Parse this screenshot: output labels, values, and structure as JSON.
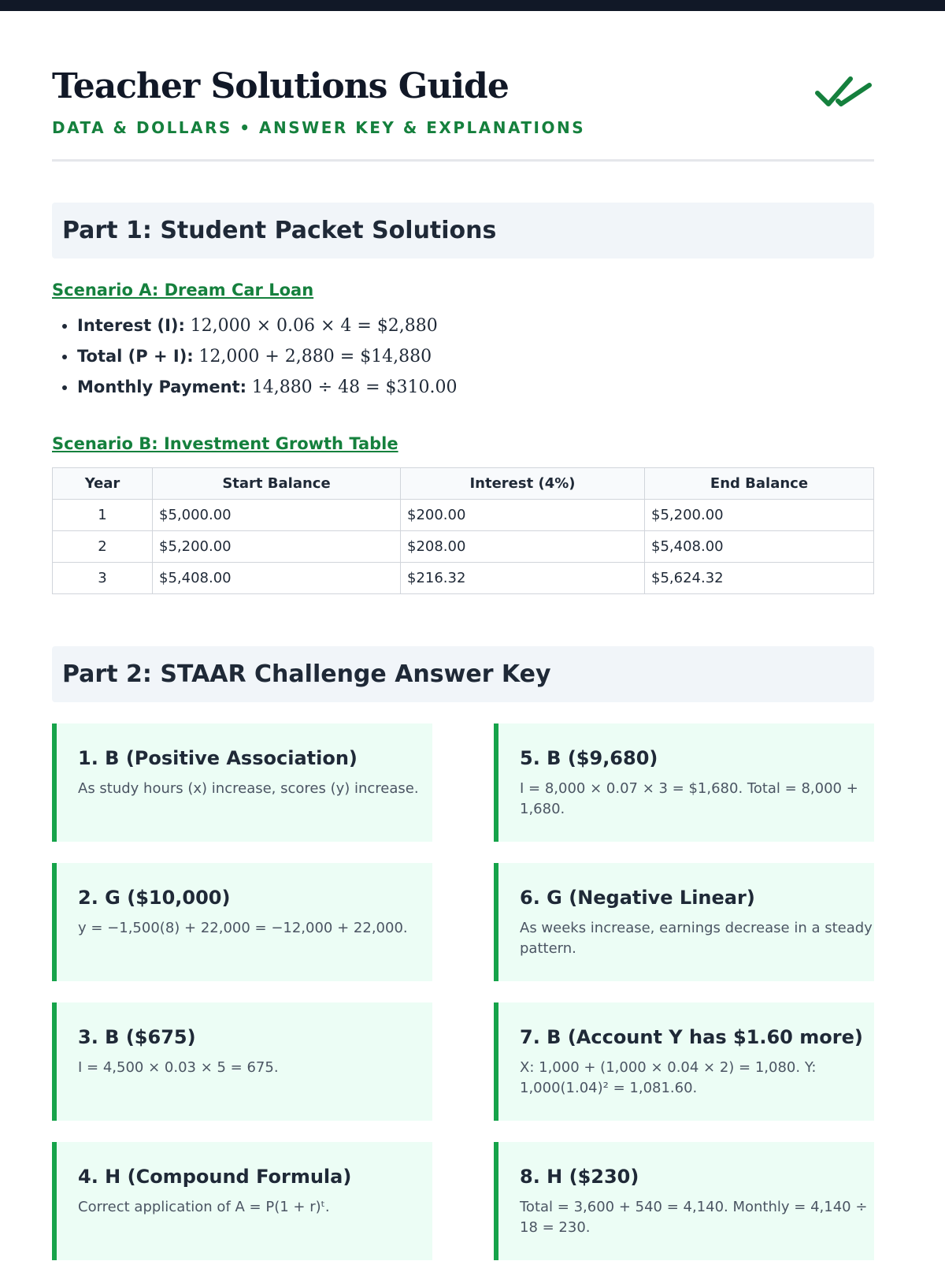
{
  "header": {
    "title": "Teacher Solutions Guide",
    "subtitle": "DATA & DOLLARS • ANSWER KEY & EXPLANATIONS"
  },
  "part1": {
    "heading": "Part 1: Student Packet Solutions",
    "scenario_a": {
      "title": "Scenario A: Dream Car Loan",
      "items": [
        {
          "label": "Interest (I):",
          "expr": "12,000 × 0.06 × 4 = $2,880"
        },
        {
          "label": "Total (P + I):",
          "expr": "12,000 + 2,880 = $14,880"
        },
        {
          "label": "Monthly Payment:",
          "expr": "14,880 ÷ 48 = $310.00"
        }
      ]
    },
    "scenario_b": {
      "title": "Scenario B: Investment Growth Table",
      "table": {
        "columns": [
          "Year",
          "Start Balance",
          "Interest (4%)",
          "End Balance"
        ],
        "rows": [
          [
            "1",
            "$5,000.00",
            "$200.00",
            "$5,200.00"
          ],
          [
            "2",
            "$5,200.00",
            "$208.00",
            "$5,408.00"
          ],
          [
            "3",
            "$5,408.00",
            "$216.32",
            "$5,624.32"
          ]
        ]
      }
    }
  },
  "part2": {
    "heading": "Part 2: STAAR Challenge Answer Key",
    "answers": [
      {
        "title": "1. B (Positive Association)",
        "explanation": "As study hours (x) increase, scores (y) increase."
      },
      {
        "title": "2. G ($10,000)",
        "explanation": "y = −1,500(8) + 22,000 = −12,000 + 22,000."
      },
      {
        "title": "3. B ($675)",
        "explanation": "I = 4,500 × 0.03 × 5 = 675."
      },
      {
        "title": "4. H (Compound Formula)",
        "explanation": "Correct application of A = P(1 + r)ᵗ."
      },
      {
        "title": "5. B ($9,680)",
        "explanation": "I = 8,000 × 0.07 × 3 = $1,680. Total = 8,000 + 1,680."
      },
      {
        "title": "6. G (Negative Linear)",
        "explanation": "As weeks increase, earnings decrease in a steady pattern."
      },
      {
        "title": "7. B (Account Y has $1.60 more)",
        "explanation": "X: 1,000 + (1,000 × 0.04 × 2) = 1,080. Y: 1,000(1.04)² = 1,081.60."
      },
      {
        "title": "8. H ($230)",
        "explanation": "Total = 3,600 + 540 = 4,140. Monthly = 4,140 ÷ 18 = 230."
      }
    ]
  }
}
